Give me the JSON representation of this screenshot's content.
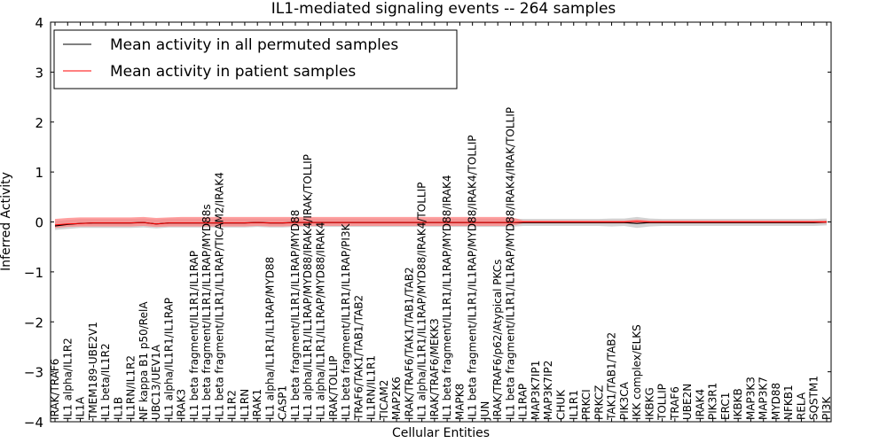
{
  "chart_data": {
    "type": "line",
    "title": "IL1-mediated signaling events -- 264 samples",
    "xlabel": "Cellular Entities",
    "ylabel": "Inferred Activity",
    "ylim": [
      -4,
      4
    ],
    "yticks": [
      "−4",
      "−3",
      "−2",
      "−1",
      "0",
      "1",
      "2",
      "3",
      "4"
    ],
    "ytick_values": [
      -4,
      -3,
      -2,
      -1,
      0,
      1,
      2,
      3,
      4
    ],
    "legend_position": "top-left",
    "categories": [
      "IRAK/TRAF6",
      "IL1 alpha/IL1R2",
      "IL1A",
      "TMEM189-UBE2V1",
      "IL1 beta/IL1R2",
      "IL1B",
      "IL1RN/IL1R2",
      "NF kappa B1 p50/RelA",
      "UBC13/UEV1A",
      "IL1 alpha/IL1R1/IL1RAP",
      "IRAK3",
      "IL1 beta fragment/IL1R1/IL1RAP",
      "IL1 beta fragment/IL1R1/IL1RAP/MYD88s",
      "IL1 beta fragment/IL1R1/IL1RAP/TICAM2/IRAK4",
      "IL1R2",
      "IL1RN",
      "IRAK1",
      "IL1 alpha/IL1R1/IL1RAP/MYD88",
      "CASP1",
      "IL1 beta fragment/IL1R1/IL1RAP/MYD88",
      "IL1 alpha/IL1R1/IL1RAP/MYD88/IRAK4/IRAK/TOLLIP",
      "IL1 alpha/IL1R1/IL1RAP/MYD88/IRAK4",
      "IRAK/TOLLIP",
      "IL1 beta fragment/IL1R1/IL1RAP/PI3K",
      "TRAF6/TAK1/TAB1/TAB2",
      "IL1RN/IL1R1",
      "TICAM2",
      "MAP2K6",
      "IRAK/TRAF6/TAK1/TAB1/TAB2",
      "IL1 alpha/IL1R1/IL1RAP/MYD88/IRAK4/TOLLIP",
      "IRAK/TRAF6/MEKK3",
      "IL1 beta fragment/IL1R1/IL1RAP/MYD88/IRAK4",
      "MAPK8",
      "IL1 beta fragment/IL1R1/IL1RAP/MYD88/IRAK4/TOLLIP",
      "JUN",
      "IRAK/TRAF6/p62/Atypical PKCs",
      "IL1 beta fragment/IL1R1/IL1RAP/MYD88/IRAK4/IRAK/TOLLIP",
      "IL1RAP",
      "MAP3K7IP1",
      "MAP3K7IP2",
      "CHUK",
      "IL1R1",
      "PRKCI",
      "PRKCZ",
      "TAK1/TAB1/TAB2",
      "PIK3CA",
      "IKK complex/ELKS",
      "IKBKG",
      "TOLLIP",
      "TRAF6",
      "UBE2N",
      "IRAK4",
      "PIK3R1",
      "ERC1",
      "IKBKB",
      "MAP3K3",
      "MAP3K7",
      "MYD88",
      "NFKB1",
      "RELA",
      "SQSTM1",
      "PI3K"
    ],
    "series": [
      {
        "name": "Mean activity in all permuted samples",
        "color": "#000000",
        "values": [
          -0.08,
          -0.05,
          -0.03,
          -0.02,
          -0.02,
          -0.02,
          -0.02,
          -0.01,
          -0.04,
          -0.02,
          -0.02,
          -0.02,
          -0.02,
          -0.02,
          -0.02,
          -0.02,
          -0.01,
          -0.02,
          -0.02,
          -0.01,
          -0.01,
          -0.01,
          -0.01,
          -0.01,
          -0.01,
          -0.01,
          -0.01,
          -0.01,
          -0.01,
          -0.01,
          -0.01,
          -0.01,
          -0.01,
          -0.01,
          -0.01,
          -0.01,
          -0.01,
          -0.01,
          -0.01,
          -0.01,
          -0.01,
          -0.01,
          -0.01,
          -0.01,
          -0.01,
          -0.01,
          -0.03,
          -0.01,
          -0.01,
          -0.01,
          -0.01,
          -0.01,
          -0.01,
          -0.01,
          -0.01,
          -0.01,
          -0.01,
          -0.01,
          -0.01,
          -0.01,
          -0.01,
          0.0
        ],
        "lower": [
          -0.16,
          -0.14,
          -0.12,
          -0.12,
          -0.12,
          -0.12,
          -0.12,
          -0.11,
          -0.13,
          -0.11,
          -0.11,
          -0.11,
          -0.11,
          -0.11,
          -0.11,
          -0.11,
          -0.1,
          -0.11,
          -0.11,
          -0.1,
          -0.1,
          -0.1,
          -0.1,
          -0.1,
          -0.1,
          -0.1,
          -0.1,
          -0.1,
          -0.1,
          -0.1,
          -0.1,
          -0.1,
          -0.1,
          -0.1,
          -0.1,
          -0.1,
          -0.1,
          -0.08,
          -0.08,
          -0.08,
          -0.08,
          -0.08,
          -0.08,
          -0.08,
          -0.09,
          -0.08,
          -0.12,
          -0.09,
          -0.08,
          -0.08,
          -0.08,
          -0.08,
          -0.08,
          -0.08,
          -0.08,
          -0.08,
          -0.08,
          -0.08,
          -0.08,
          -0.08,
          -0.08,
          -0.07
        ],
        "upper": [
          0.02,
          0.04,
          0.06,
          0.06,
          0.06,
          0.06,
          0.06,
          0.07,
          0.05,
          0.07,
          0.07,
          0.07,
          0.07,
          0.07,
          0.07,
          0.07,
          0.07,
          0.07,
          0.07,
          0.07,
          0.07,
          0.07,
          0.07,
          0.07,
          0.07,
          0.07,
          0.07,
          0.07,
          0.07,
          0.07,
          0.07,
          0.07,
          0.07,
          0.07,
          0.07,
          0.07,
          0.07,
          0.06,
          0.06,
          0.06,
          0.06,
          0.06,
          0.06,
          0.06,
          0.07,
          0.07,
          0.1,
          0.07,
          0.06,
          0.06,
          0.06,
          0.06,
          0.06,
          0.06,
          0.06,
          0.06,
          0.06,
          0.06,
          0.06,
          0.06,
          0.06,
          0.07
        ],
        "band_color": "#c8c8c8"
      },
      {
        "name": "Mean activity in patient samples",
        "color": "#ff0000",
        "values": [
          -0.06,
          -0.04,
          -0.03,
          -0.02,
          -0.02,
          -0.02,
          -0.02,
          -0.01,
          -0.04,
          -0.02,
          -0.02,
          -0.02,
          -0.02,
          -0.02,
          -0.02,
          -0.02,
          -0.01,
          -0.02,
          -0.02,
          -0.01,
          -0.01,
          -0.01,
          -0.01,
          -0.01,
          -0.01,
          -0.01,
          -0.01,
          -0.01,
          -0.01,
          -0.01,
          -0.01,
          -0.01,
          -0.01,
          -0.01,
          -0.01,
          -0.01,
          -0.01,
          0.0,
          0.0,
          0.0,
          0.0,
          0.0,
          0.0,
          0.0,
          0.0,
          0.0,
          0.01,
          0.0,
          0.0,
          0.0,
          0.0,
          0.0,
          0.0,
          0.0,
          0.0,
          0.0,
          0.0,
          0.0,
          0.0,
          0.0,
          0.0,
          0.0
        ],
        "lower": [
          -0.12,
          -0.1,
          -0.09,
          -0.09,
          -0.09,
          -0.09,
          -0.09,
          -0.08,
          -0.1,
          -0.09,
          -0.09,
          -0.09,
          -0.09,
          -0.09,
          -0.09,
          -0.09,
          -0.08,
          -0.09,
          -0.09,
          -0.08,
          -0.08,
          -0.08,
          -0.08,
          -0.08,
          -0.08,
          -0.08,
          -0.08,
          -0.08,
          -0.08,
          -0.08,
          -0.08,
          -0.08,
          -0.08,
          -0.08,
          -0.08,
          -0.08,
          -0.08,
          -0.03,
          -0.03,
          -0.03,
          -0.03,
          -0.03,
          -0.03,
          -0.03,
          -0.03,
          -0.03,
          -0.03,
          -0.03,
          -0.03,
          -0.03,
          -0.03,
          -0.03,
          -0.03,
          -0.03,
          -0.03,
          -0.03,
          -0.03,
          -0.03,
          -0.03,
          -0.03,
          -0.03,
          -0.03
        ],
        "upper": [
          0.06,
          0.08,
          0.09,
          0.09,
          0.09,
          0.09,
          0.09,
          0.1,
          0.08,
          0.09,
          0.1,
          0.1,
          0.1,
          0.1,
          0.1,
          0.1,
          0.1,
          0.1,
          0.1,
          0.1,
          0.1,
          0.1,
          0.1,
          0.1,
          0.1,
          0.1,
          0.1,
          0.1,
          0.1,
          0.1,
          0.1,
          0.1,
          0.1,
          0.1,
          0.1,
          0.1,
          0.1,
          0.03,
          0.03,
          0.03,
          0.03,
          0.03,
          0.03,
          0.03,
          0.03,
          0.03,
          0.05,
          0.03,
          0.03,
          0.03,
          0.03,
          0.03,
          0.03,
          0.03,
          0.03,
          0.03,
          0.03,
          0.03,
          0.03,
          0.03,
          0.03,
          0.03
        ],
        "band_color": "#ff8080"
      }
    ]
  }
}
